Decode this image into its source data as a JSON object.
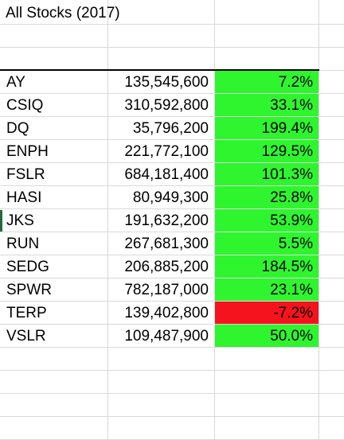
{
  "sheet": {
    "title": "All Stocks (2017)",
    "colors": {
      "positive_fill": "#2ef52e",
      "negative_fill": "#f5141e",
      "gridline": "#d9d9d9",
      "header_rule": "#000000",
      "selected_row_marker": "#1e6b3a"
    },
    "rows": [
      {
        "ticker": "AY",
        "volume": "135,545,600",
        "return": "7.2%",
        "status": "positive"
      },
      {
        "ticker": "CSIQ",
        "volume": "310,592,800",
        "return": "33.1%",
        "status": "positive"
      },
      {
        "ticker": "DQ",
        "volume": "35,796,200",
        "return": "199.4%",
        "status": "positive"
      },
      {
        "ticker": "ENPH",
        "volume": "221,772,100",
        "return": "129.5%",
        "status": "positive"
      },
      {
        "ticker": "FSLR",
        "volume": "684,181,400",
        "return": "101.3%",
        "status": "positive"
      },
      {
        "ticker": "HASI",
        "volume": "80,949,300",
        "return": "25.8%",
        "status": "positive"
      },
      {
        "ticker": "JKS",
        "volume": "191,632,200",
        "return": "53.9%",
        "status": "positive"
      },
      {
        "ticker": "RUN",
        "volume": "267,681,300",
        "return": "5.5%",
        "status": "positive"
      },
      {
        "ticker": "SEDG",
        "volume": "206,885,200",
        "return": "184.5%",
        "status": "positive"
      },
      {
        "ticker": "SPWR",
        "volume": "782,187,000",
        "return": "23.1%",
        "status": "positive"
      },
      {
        "ticker": "TERP",
        "volume": "139,402,800",
        "return": "-7.2%",
        "status": "negative"
      },
      {
        "ticker": "VSLR",
        "volume": "109,487,900",
        "return": "50.0%",
        "status": "positive"
      }
    ]
  }
}
